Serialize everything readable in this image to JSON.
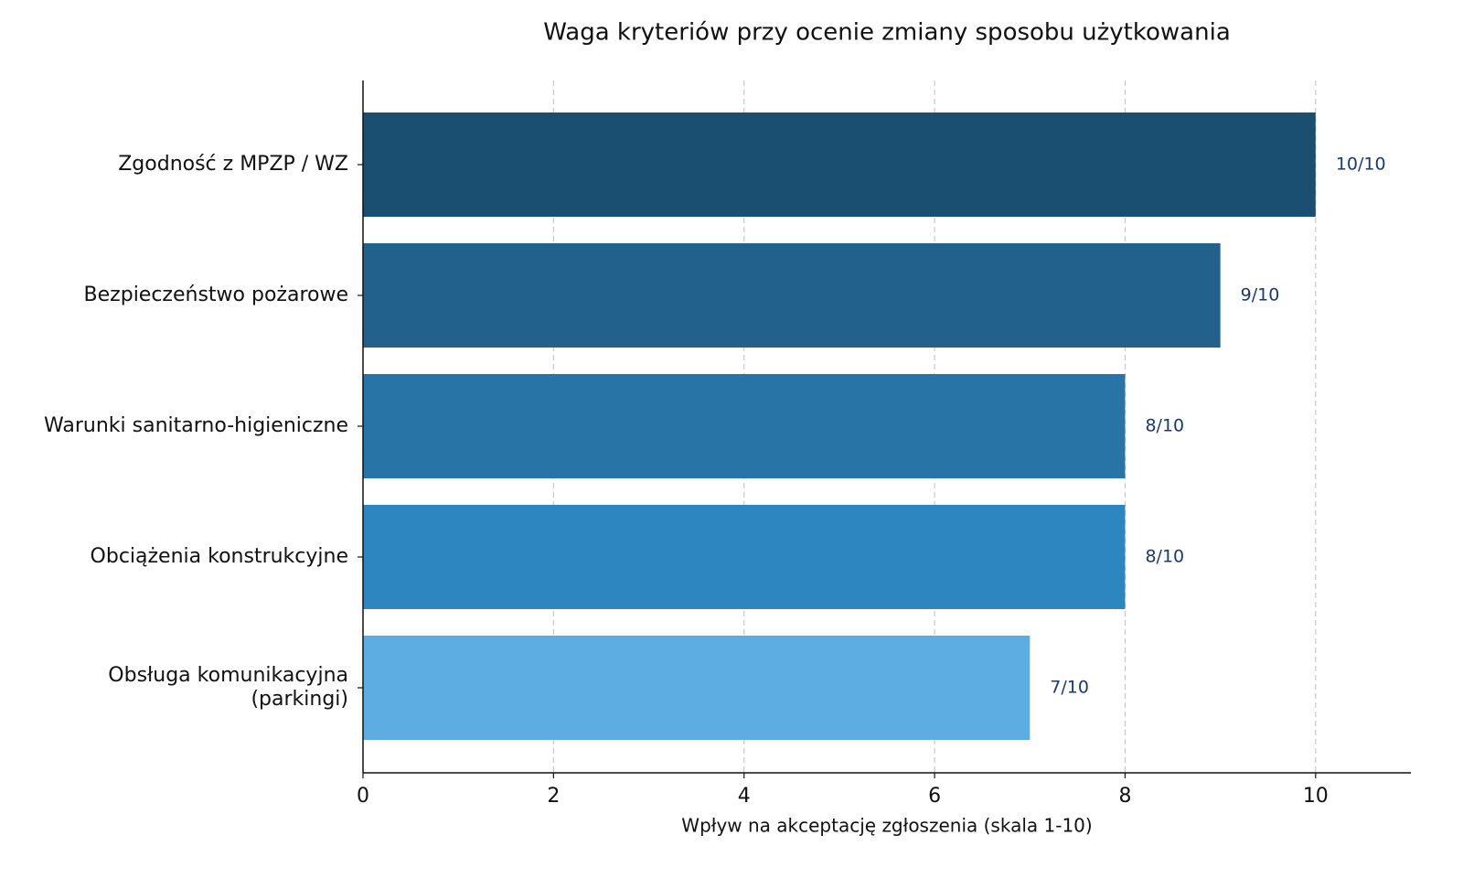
{
  "chart_data": {
    "type": "barh",
    "title": "Waga kryteriów przy ocenie zmiany sposobu użytkowania",
    "x_label": "Wpływ na akceptację zgłoszenia (skala 1-10)",
    "categories": [
      "Zgodność z MPZP / WZ",
      "Bezpieczeństwo pożarowe",
      "Warunki sanitarno-higieniczne",
      "Obciążenia konstrukcyjne",
      "Obsługa komunikacyjna\n(parkingi)"
    ],
    "values": [
      10,
      9,
      8,
      8,
      7
    ],
    "value_labels": [
      "10/10",
      "9/10",
      "8/10",
      "8/10",
      "7/10"
    ],
    "colors": [
      "#1b4f72",
      "#21618c",
      "#2874a6",
      "#2e86c1",
      "#5dade2"
    ],
    "xlim": [
      0,
      11
    ],
    "xticks": [
      0,
      2,
      4,
      6,
      8,
      10
    ],
    "grid": true
  }
}
